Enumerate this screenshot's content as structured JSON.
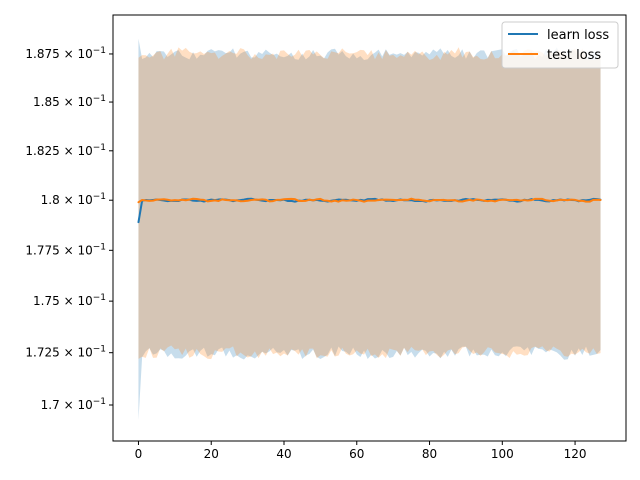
{
  "chart_data": {
    "type": "line",
    "title": "",
    "xlabel": "",
    "ylabel": "",
    "xlim": [
      -7,
      134
    ],
    "ylim": [
      0.1683,
      0.18955
    ],
    "y_scale": "log",
    "grid": false,
    "legend_position": "top-right",
    "x_ticks": [
      {
        "value": 0,
        "label": "0"
      },
      {
        "value": 20,
        "label": "20"
      },
      {
        "value": 40,
        "label": "40"
      },
      {
        "value": 60,
        "label": "60"
      },
      {
        "value": 80,
        "label": "80"
      },
      {
        "value": 100,
        "label": "100"
      },
      {
        "value": 120,
        "label": "120"
      }
    ],
    "y_ticks": [
      {
        "value": 0.17,
        "mantissa": "1.7",
        "label": "1.7 × 10⁻¹"
      },
      {
        "value": 0.1725,
        "mantissa": "1.725",
        "label": "1.725 × 10⁻¹"
      },
      {
        "value": 0.175,
        "mantissa": "1.75",
        "label": "1.75 × 10⁻¹"
      },
      {
        "value": 0.1775,
        "mantissa": "1.775",
        "label": "1.775 × 10⁻¹"
      },
      {
        "value": 0.18,
        "mantissa": "1.8",
        "label": "1.8 × 10⁻¹"
      },
      {
        "value": 0.1825,
        "mantissa": "1.825",
        "label": "1.825 × 10⁻¹"
      },
      {
        "value": 0.185,
        "mantissa": "1.85",
        "label": "1.85 × 10⁻¹"
      },
      {
        "value": 0.1875,
        "mantissa": "1.875",
        "label": "1.875 × 10⁻¹"
      }
    ],
    "y_tick_suffix": {
      "base": "10",
      "exponent": "−1"
    },
    "series": [
      {
        "name": "learn loss",
        "color": "#1f77b4",
        "band_color": "#1f77b4",
        "x_start": 0,
        "x_end": 127,
        "start_value": 0.1789,
        "steady_value": 0.18,
        "upper_start": 0.1883,
        "upper_steady": 0.1875,
        "lower_start": 0.1693,
        "lower_steady": 0.1725
      },
      {
        "name": "test loss",
        "color": "#ff7f0e",
        "band_color": "#ff7f0e",
        "x_start": 0,
        "x_end": 127,
        "start_value": 0.1799,
        "steady_value": 0.18,
        "upper_start": 0.1873,
        "upper_steady": 0.1875,
        "lower_start": 0.1722,
        "lower_steady": 0.1725
      }
    ]
  }
}
